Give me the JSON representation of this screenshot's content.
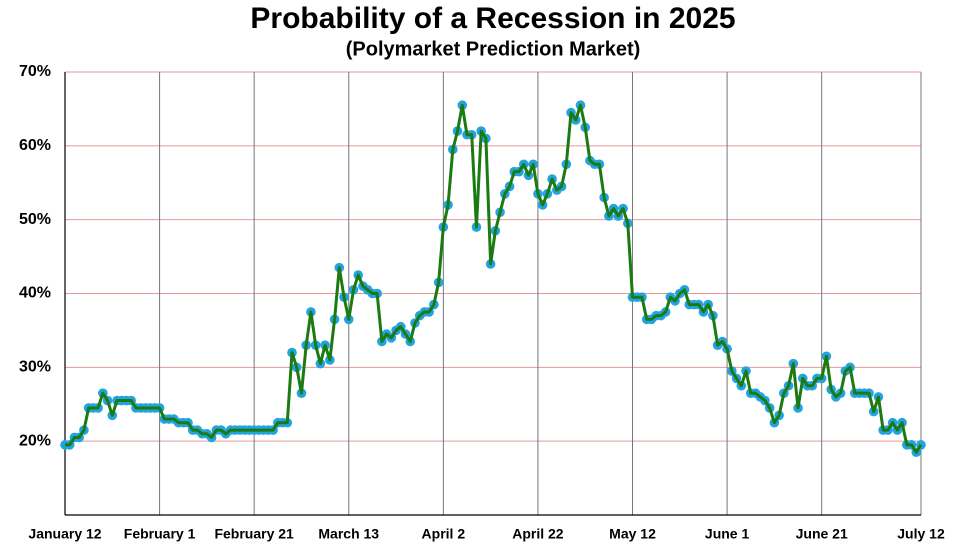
{
  "chart_data": {
    "type": "line",
    "title": "Probability of a Recession in 2025",
    "subtitle": "(Polymarket Prediction Market)",
    "x": [
      0,
      1,
      2,
      3,
      4,
      5,
      6,
      7,
      8,
      9,
      10,
      11,
      12,
      13,
      14,
      15,
      16,
      17,
      18,
      19,
      20,
      21,
      22,
      23,
      24,
      25,
      26,
      27,
      28,
      29,
      30,
      31,
      32,
      33,
      34,
      35,
      36,
      37,
      38,
      39,
      40,
      41,
      42,
      43,
      44,
      45,
      46,
      47,
      48,
      49,
      50,
      51,
      52,
      53,
      54,
      55,
      56,
      57,
      58,
      59,
      60,
      61,
      62,
      63,
      64,
      65,
      66,
      67,
      68,
      69,
      70,
      71,
      72,
      73,
      74,
      75,
      76,
      77,
      78,
      79,
      80,
      81,
      82,
      83,
      84,
      85,
      86,
      87,
      88,
      89,
      90,
      91,
      92,
      93,
      94,
      95,
      96,
      97,
      98,
      99,
      100,
      101,
      102,
      103,
      104,
      105,
      106,
      107,
      108,
      109,
      110,
      111,
      112,
      113,
      114,
      115,
      116,
      117,
      118,
      119,
      120,
      121,
      122,
      123,
      124,
      125,
      126,
      127,
      128,
      129,
      130,
      131,
      132,
      133,
      134,
      135,
      136,
      137,
      138,
      139,
      140,
      141,
      142,
      143,
      144,
      145,
      146,
      147,
      148,
      149,
      150,
      151,
      152,
      153,
      154,
      155,
      156,
      157,
      158,
      159,
      160,
      161,
      162,
      163,
      164,
      165,
      166,
      167,
      168,
      169,
      170,
      171,
      172,
      173,
      174,
      175,
      176,
      177,
      178,
      179,
      180,
      181
    ],
    "values": [
      19.5,
      19.5,
      20.5,
      20.5,
      21.5,
      24.5,
      24.5,
      24.5,
      26.5,
      25.5,
      23.5,
      25.5,
      25.5,
      25.5,
      25.5,
      24.5,
      24.5,
      24.5,
      24.5,
      24.5,
      24.5,
      23,
      23,
      23,
      22.5,
      22.5,
      22.5,
      21.5,
      21.5,
      21,
      21,
      20.5,
      21.5,
      21.5,
      21,
      21.5,
      21.5,
      21.5,
      21.5,
      21.5,
      21.5,
      21.5,
      21.5,
      21.5,
      21.5,
      22.5,
      22.5,
      22.5,
      32,
      30,
      26.5,
      33,
      37.5,
      33,
      30.5,
      33,
      31,
      36.5,
      43.5,
      39.5,
      36.5,
      40.5,
      42.5,
      41,
      40.5,
      40,
      40,
      33.5,
      34.5,
      34,
      35,
      35.5,
      34.5,
      33.5,
      36,
      37,
      37.5,
      37.5,
      38.5,
      41.5,
      49,
      52,
      59.5,
      62,
      65.5,
      61.5,
      61.5,
      49,
      62,
      61,
      44,
      48.5,
      51,
      53.5,
      54.5,
      56.5,
      56.5,
      57.5,
      56,
      57.5,
      53.5,
      52,
      53.5,
      55.5,
      54,
      54.5,
      57.5,
      64.5,
      63.5,
      65.5,
      62.5,
      58,
      57.5,
      57.5,
      53,
      50.5,
      51.5,
      50.5,
      51.5,
      49.5,
      39.5,
      39.5,
      39.5,
      36.5,
      36.5,
      37,
      37,
      37.5,
      39.5,
      39,
      40,
      40.5,
      38.5,
      38.5,
      38.5,
      37.5,
      38.5,
      37,
      33,
      33.5,
      32.5,
      29.5,
      28.5,
      27.5,
      29.5,
      26.5,
      26.5,
      26,
      25.5,
      24.5,
      22.5,
      23.5,
      26.5,
      27.5,
      30.5,
      24.5,
      28.5,
      27.5,
      27.5,
      28.5,
      28.5,
      31.5,
      27,
      26,
      26.5,
      29.5,
      30,
      26.5,
      26.5,
      26.5,
      26.5,
      24,
      26,
      21.5,
      21.5,
      22.5,
      21.5,
      22.5,
      19.5,
      19.5,
      18.5,
      19.5
    ],
    "color": "#1b7a12",
    "marker_color": "#22a4e0",
    "xlim": [
      0,
      181
    ],
    "xticks": [
      {
        "value": 0,
        "label": "January 12"
      },
      {
        "value": 20,
        "label": "February 1"
      },
      {
        "value": 40,
        "label": "February 21"
      },
      {
        "value": 60,
        "label": "March 13"
      },
      {
        "value": 80,
        "label": "April 2"
      },
      {
        "value": 100,
        "label": "April 22"
      },
      {
        "value": 120,
        "label": "May 12"
      },
      {
        "value": 140,
        "label": "June 1"
      },
      {
        "value": 160,
        "label": "June 21"
      },
      {
        "value": 181,
        "label": "July 12"
      }
    ],
    "ylim": [
      10,
      70
    ],
    "yticks": [
      {
        "value": 20,
        "label": "20%"
      },
      {
        "value": 30,
        "label": "30%"
      },
      {
        "value": 40,
        "label": "40%"
      },
      {
        "value": 50,
        "label": "50%"
      },
      {
        "value": 60,
        "label": "60%"
      },
      {
        "value": 70,
        "label": "70%"
      }
    ],
    "grid": true
  }
}
